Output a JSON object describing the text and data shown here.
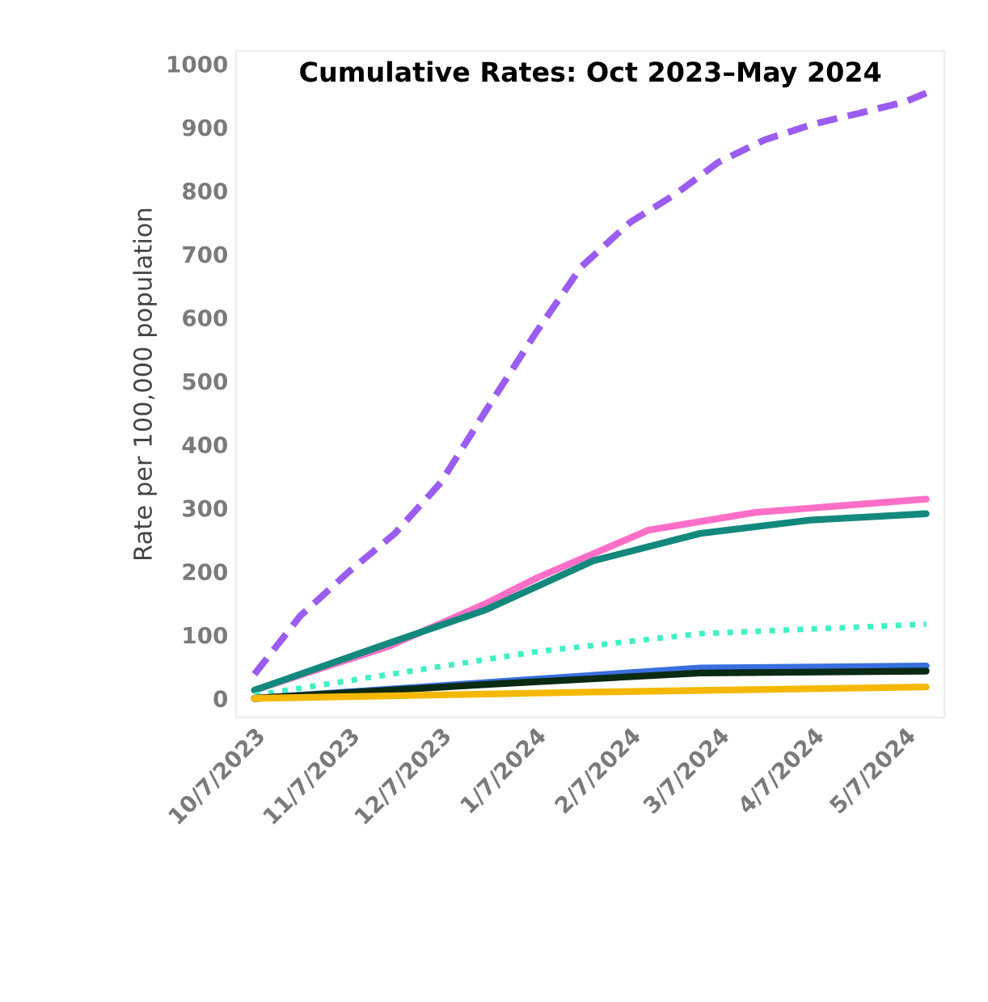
{
  "chart_data": {
    "type": "line",
    "title": "Cumulative Rates: Oct 2023–May 2024",
    "ylabel": "Rate per 100,000 population",
    "ylim": [
      -30,
      1020
    ],
    "yticks": [
      0,
      100,
      200,
      300,
      400,
      500,
      600,
      700,
      800,
      900,
      1000
    ],
    "xlim": [
      "2023-10-01",
      "2024-05-20"
    ],
    "xticks": [
      {
        "value": "2023-10-07",
        "label": "10/7/2023"
      },
      {
        "value": "2023-11-07",
        "label": "11/7/2023"
      },
      {
        "value": "2023-12-07",
        "label": "12/7/2023"
      },
      {
        "value": "2024-01-07",
        "label": "1/7/2024"
      },
      {
        "value": "2024-02-07",
        "label": "2/7/2024"
      },
      {
        "value": "2024-03-07",
        "label": "3/7/2024"
      },
      {
        "value": "2024-04-07",
        "label": "4/7/2024"
      },
      {
        "value": "2024-05-07",
        "label": "5/7/2024"
      }
    ],
    "grid": false,
    "marker": "none",
    "series": [
      {
        "color": "#9b5cf0",
        "line_style": "dashed",
        "x": [
          "2023-10-07",
          "2023-10-22",
          "2023-11-07",
          "2023-11-22",
          "2023-12-07",
          "2023-12-22",
          "2024-01-07",
          "2024-01-22",
          "2024-02-07",
          "2024-02-22",
          "2024-03-07",
          "2024-03-22",
          "2024-04-07",
          "2024-04-22",
          "2024-05-07",
          "2024-05-14"
        ],
        "values": [
          38,
          130,
          200,
          260,
          340,
          455,
          575,
          680,
          750,
          795,
          845,
          880,
          905,
          922,
          940,
          954
        ]
      },
      {
        "color": "#ff6ec7",
        "line_style": "solid",
        "x": [
          "2023-10-07",
          "2023-11-20",
          "2023-12-22",
          "2024-01-08",
          "2024-02-13",
          "2024-03-19",
          "2024-05-14"
        ],
        "values": [
          13,
          82,
          150,
          191,
          265,
          293,
          314
        ]
      },
      {
        "color": "#13897d",
        "line_style": "solid",
        "x": [
          "2023-10-07",
          "2023-11-20",
          "2023-12-22",
          "2024-01-26",
          "2024-03-01",
          "2024-04-06",
          "2024-05-14"
        ],
        "values": [
          13,
          87,
          140,
          217,
          260,
          281,
          291
        ]
      },
      {
        "color": "#40f0c4",
        "line_style": "dotted",
        "x": [
          "2023-10-07",
          "2024-01-08",
          "2024-03-01",
          "2024-05-14"
        ],
        "values": [
          5,
          74,
          102,
          117
        ]
      },
      {
        "color": "#3a6fe0",
        "line_style": "solid",
        "x": [
          "2023-10-07",
          "2023-12-22",
          "2024-03-01",
          "2024-05-14"
        ],
        "values": [
          0,
          25,
          48,
          51
        ]
      },
      {
        "color": "#0a2a12",
        "line_style": "solid",
        "x": [
          "2023-10-07",
          "2023-12-22",
          "2024-03-01",
          "2024-05-14"
        ],
        "values": [
          0,
          22,
          40,
          43
        ]
      },
      {
        "color": "#f5b800",
        "line_style": "solid",
        "x": [
          "2023-10-07",
          "2024-01-26",
          "2024-05-14"
        ],
        "values": [
          0,
          10,
          18
        ]
      }
    ]
  }
}
